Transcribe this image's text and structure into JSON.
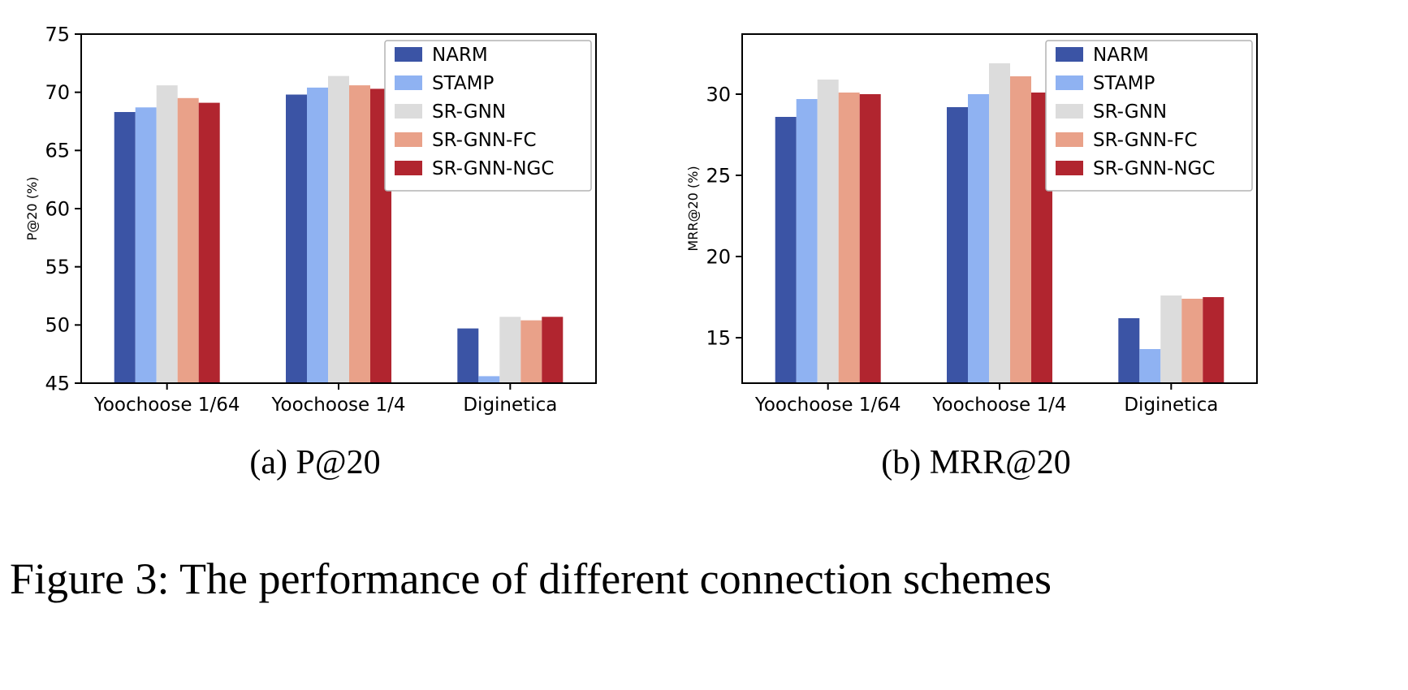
{
  "figure_caption": "Figure 3: The performance of different connection schemes",
  "chart_data": [
    {
      "type": "bar",
      "caption": "(a) P@20",
      "ylabel": "P@20 (%)",
      "ylim": [
        45,
        75
      ],
      "yticks": [
        45,
        50,
        55,
        60,
        65,
        70,
        75
      ],
      "legend_position": "upper right",
      "grid": false,
      "categories": [
        "Yoochoose 1/64",
        "Yoochoose 1/4",
        "Diginetica"
      ],
      "series": [
        {
          "name": "NARM",
          "color": "#3b54a5",
          "values": [
            68.3,
            69.8,
            49.7
          ]
        },
        {
          "name": "STAMP",
          "color": "#8fb2f2",
          "values": [
            68.7,
            70.4,
            45.6
          ]
        },
        {
          "name": "SR-GNN",
          "color": "#dcdcdc",
          "values": [
            70.6,
            71.4,
            50.7
          ]
        },
        {
          "name": "SR-GNN-FC",
          "color": "#e9a189",
          "values": [
            69.5,
            70.6,
            50.4
          ]
        },
        {
          "name": "SR-GNN-NGC",
          "color": "#b1252f",
          "values": [
            69.1,
            70.3,
            50.7
          ]
        }
      ]
    },
    {
      "type": "bar",
      "caption": "(b) MRR@20",
      "ylabel": "MRR@20 (%)",
      "ylim": [
        12.2,
        33.7
      ],
      "yticks": [
        15,
        20,
        25,
        30
      ],
      "legend_position": "upper right",
      "grid": false,
      "categories": [
        "Yoochoose 1/64",
        "Yoochoose 1/4",
        "Diginetica"
      ],
      "series": [
        {
          "name": "NARM",
          "color": "#3b54a5",
          "values": [
            28.6,
            29.2,
            16.2
          ]
        },
        {
          "name": "STAMP",
          "color": "#8fb2f2",
          "values": [
            29.7,
            30.0,
            14.3
          ]
        },
        {
          "name": "SR-GNN",
          "color": "#dcdcdc",
          "values": [
            30.9,
            31.9,
            17.6
          ]
        },
        {
          "name": "SR-GNN-FC",
          "color": "#e9a189",
          "values": [
            30.1,
            31.1,
            17.4
          ]
        },
        {
          "name": "SR-GNN-NGC",
          "color": "#b1252f",
          "values": [
            30.0,
            30.1,
            17.5
          ]
        }
      ]
    }
  ]
}
